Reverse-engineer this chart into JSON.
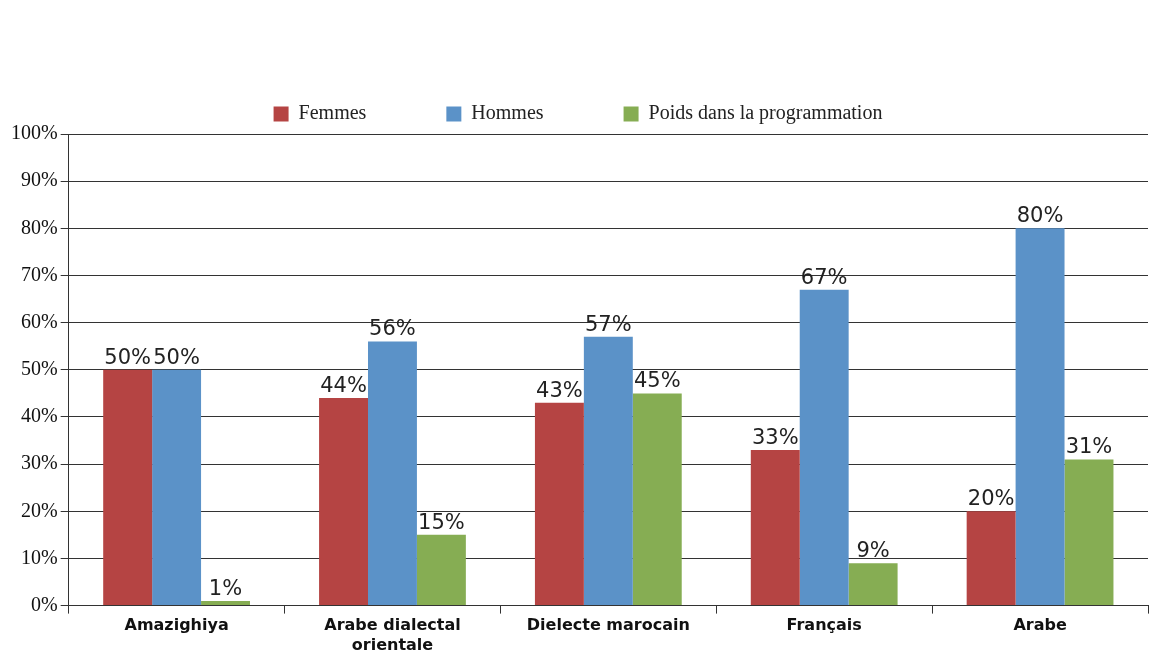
{
  "chart_data": {
    "type": "bar",
    "categories": [
      "Amazighiya",
      "Arabe dialectal orientale",
      "Dielecte marocain",
      "Français",
      "Arabe"
    ],
    "series": [
      {
        "name": "Femmes",
        "color": "#b54443",
        "values": [
          50,
          44,
          43,
          33,
          20
        ],
        "value_labels": [
          "50%",
          "44%",
          "43%",
          "33%",
          "20%"
        ]
      },
      {
        "name": "Hommes",
        "color": "#5b92c8",
        "values": [
          50,
          56,
          57,
          67,
          80
        ],
        "value_labels": [
          "50%",
          "56%",
          "57%",
          "67%",
          "80%"
        ]
      },
      {
        "name": "Poids dans la programmation",
        "color": "#86ad53",
        "values": [
          1,
          15,
          45,
          9,
          31
        ],
        "value_labels": [
          "1%",
          "15%",
          "45%",
          "9%",
          "31%"
        ]
      }
    ],
    "ylim": [
      0,
      100
    ],
    "yticks": [
      {
        "value": 0,
        "label": "0%"
      },
      {
        "value": 10,
        "label": "10%"
      },
      {
        "value": 20,
        "label": "20%"
      },
      {
        "value": 30,
        "label": "30%"
      },
      {
        "value": 40,
        "label": "40%"
      },
      {
        "value": 50,
        "label": "50%"
      },
      {
        "value": 60,
        "label": "60%"
      },
      {
        "value": 70,
        "label": "70%"
      },
      {
        "value": 80,
        "label": "80%"
      },
      {
        "value": 90,
        "label": "90%"
      },
      {
        "value": 100,
        "label": "100%"
      }
    ],
    "grid": "y",
    "legend": "top"
  }
}
